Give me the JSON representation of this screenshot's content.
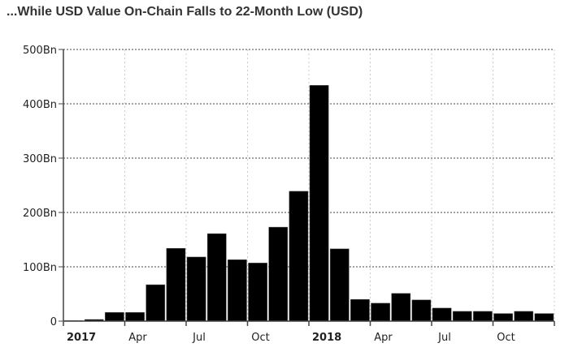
{
  "chart_data": {
    "type": "bar",
    "title": "...While USD Value On-Chain Falls to 22-Month Low (USD)",
    "xlabel": "",
    "ylabel": "",
    "categories": [
      "2017-01",
      "2017-02",
      "2017-03",
      "2017-04",
      "2017-05",
      "2017-06",
      "2017-07",
      "2017-08",
      "2017-09",
      "2017-10",
      "2017-11",
      "2017-12",
      "2018-01",
      "2018-02",
      "2018-03",
      "2018-04",
      "2018-05",
      "2018-06",
      "2018-07",
      "2018-08",
      "2018-09",
      "2018-10",
      "2018-11",
      "2018-12"
    ],
    "values": [
      1,
      3,
      16,
      16,
      67,
      134,
      118,
      161,
      113,
      107,
      173,
      239,
      434,
      133,
      40,
      33,
      51,
      39,
      24,
      18,
      18,
      14,
      18,
      14
    ],
    "unit": "Bn",
    "ylim": [
      0,
      500
    ],
    "yticks": [
      {
        "v": 0,
        "label": "0"
      },
      {
        "v": 100,
        "label": "100Bn"
      },
      {
        "v": 200,
        "label": "200Bn"
      },
      {
        "v": 300,
        "label": "300Bn"
      },
      {
        "v": 400,
        "label": "400Bn"
      },
      {
        "v": 500,
        "label": "500Bn"
      }
    ],
    "xticks": [
      {
        "m": 0,
        "label": "2017",
        "bold": true
      },
      {
        "m": 3,
        "label": "Apr"
      },
      {
        "m": 6,
        "label": "Jul"
      },
      {
        "m": 9,
        "label": "Oct"
      },
      {
        "m": 12,
        "label": "2018",
        "bold": true
      },
      {
        "m": 15,
        "label": "Apr"
      },
      {
        "m": 18,
        "label": "Jul"
      },
      {
        "m": 21,
        "label": "Oct"
      }
    ],
    "grid": true,
    "bar_color": "#000000"
  }
}
